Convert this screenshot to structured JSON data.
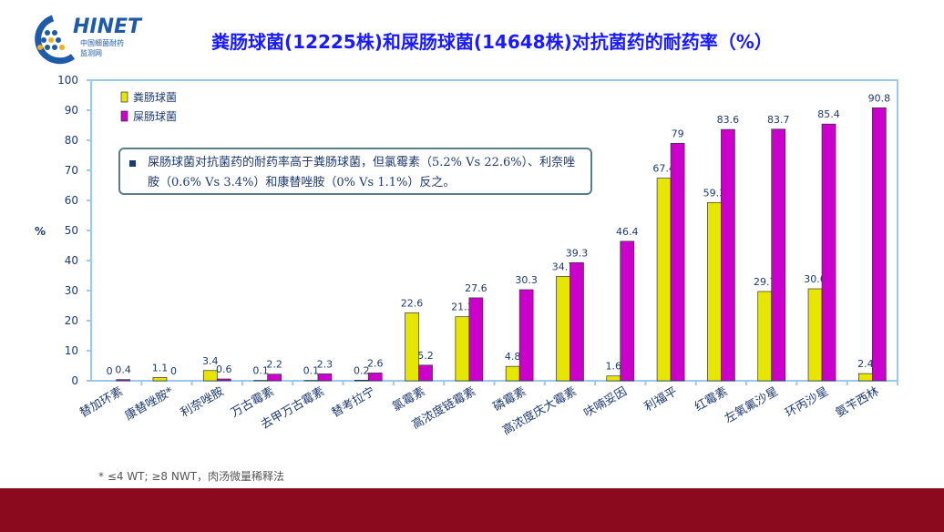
{
  "logo": {
    "text": "CHINET",
    "sub1": "中国细菌耐药",
    "sub2": "监测网"
  },
  "title": "粪肠球菌(12225株)和屎肠球菌(14648株)对抗菌药的耐药率（%）",
  "note": "屎肠球菌对抗菌药的耐药率高于粪肠球菌，但氯霉素（5.2% Vs 22.6%）、利奈唑胺（0.6% Vs 3.4%）和康替唑胺（0% Vs 1.1%）反之。",
  "footnote": "* ≤4 WT; ≥8 NWT，肉汤微量稀释法",
  "chart_data": {
    "type": "bar",
    "title": "粪肠球菌(12225株)和屎肠球菌(14648株)对抗菌药的耐药率（%）",
    "ylabel": "%",
    "xlabel": "",
    "ylim": [
      0,
      100
    ],
    "yticks": [
      0,
      10,
      20,
      30,
      40,
      50,
      60,
      70,
      80,
      90,
      100
    ],
    "legend_position": "top-left",
    "categories": [
      "替加环素",
      "康替唑胺*",
      "利奈唑胺",
      "万古霉素",
      "去甲万古霉素",
      "替考拉宁",
      "氯霉素",
      "高浓度链霉素",
      "磷霉素",
      "高浓度庆大霉素",
      "呋喃妥因",
      "利福平",
      "红霉素",
      "左氧氟沙星",
      "环丙沙星",
      "氨苄西林"
    ],
    "series": [
      {
        "name": "粪肠球菌",
        "color": "#e6e600",
        "values": [
          0,
          1.1,
          3.4,
          0.1,
          0.1,
          0.2,
          22.6,
          21.3,
          4.8,
          34.7,
          1.6,
          67.4,
          59.3,
          29.7,
          30.6,
          2.4
        ]
      },
      {
        "name": "屎肠球菌",
        "color": "#cc00cc",
        "values": [
          0.4,
          0,
          0.6,
          2.2,
          2.3,
          2.6,
          5.2,
          27.6,
          30.3,
          39.3,
          46.4,
          79,
          83.6,
          83.7,
          85.4,
          90.8
        ]
      }
    ]
  }
}
